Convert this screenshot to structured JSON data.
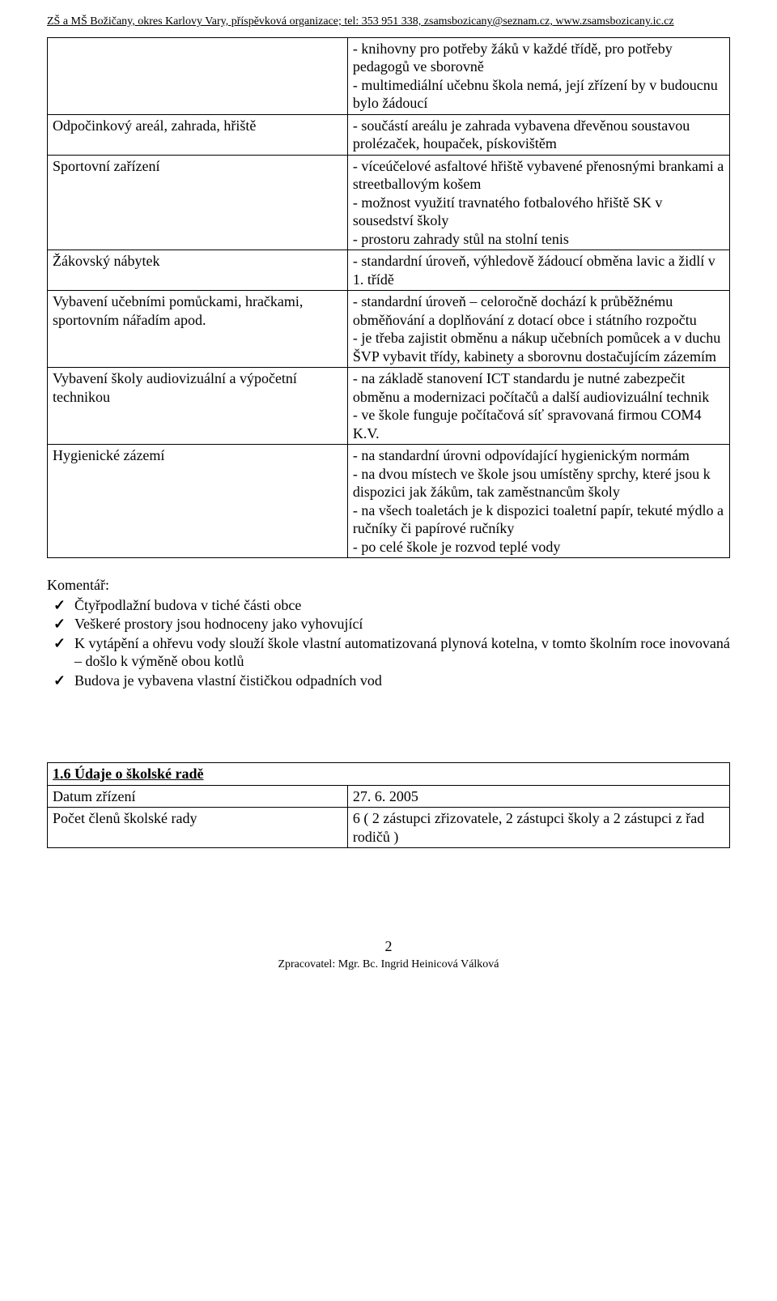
{
  "header": {
    "text": "ZŠ a MŠ Božičany, okres Karlovy Vary, příspěvková organizace; tel: 353 951 338, zsamsbozicany@seznam.cz, www.zsamsbozicany.ic.cz"
  },
  "table1": {
    "rows": [
      {
        "left": "",
        "right": "- knihovny pro potřeby žáků v každé třídě, pro potřeby pedagogů ve sborovně\n- multimediální učebnu škola nemá, její zřízení by v budoucnu bylo žádoucí"
      },
      {
        "left": "Odpočinkový areál, zahrada, hřiště",
        "right": "- součástí areálu je zahrada vybavena dřevěnou soustavou prolézaček, houpaček, pískovištěm"
      },
      {
        "left": "Sportovní zařízení",
        "right": "- víceúčelové asfaltové hřiště vybavené přenosnými brankami a streetballovým košem\n- možnost využití travnatého fotbalového hřiště SK v sousedství školy\n- prostoru zahrady stůl na stolní tenis"
      },
      {
        "left": "Žákovský nábytek",
        "right": "- standardní úroveň, výhledově žádoucí obměna lavic a židlí v 1. třídě"
      },
      {
        "left": "Vybavení učebními pomůckami, hračkami, sportovním nářadím apod.",
        "right": "- standardní úroveň – celoročně dochází k průběžnému obměňování a doplňování z dotací obce i státního rozpočtu\n- je třeba zajistit obměnu a nákup učebních pomůcek a v duchu ŠVP vybavit třídy, kabinety a sborovnu dostačujícím zázemím"
      },
      {
        "left": "Vybavení školy audiovizuální a výpočetní technikou",
        "right": "- na základě stanovení ICT standardu je nutné zabezpečit obměnu a modernizaci počítačů a další audiovizuální technik\n-  ve škole funguje počítačová síť spravovaná firmou COM4 K.V."
      },
      {
        "left": "Hygienické zázemí",
        "right": "- na standardní úrovni odpovídající hygienickým normám\n- na dvou místech ve škole jsou umístěny sprchy, které jsou k dispozici jak žákům, tak zaměstnancům školy\n- na všech toaletách je k dispozici toaletní papír, tekuté mýdlo a ručníky či papírové ručníky\n- po celé škole je rozvod teplé vody"
      }
    ]
  },
  "komentar": {
    "label": "Komentář:",
    "items": [
      "Čtyřpodlažní budova v tiché části obce",
      "Veškeré prostory jsou hodnoceny jako vyhovující",
      "K vytápění a ohřevu vody slouží škole vlastní automatizovaná plynová kotelna, v tomto školním roce inovovaná – došlo k výměně obou kotlů",
      "Budova je vybavena vlastní čističkou odpadních vod"
    ]
  },
  "rada": {
    "heading": "1.6 Údaje o školské radě",
    "rows": [
      {
        "left": "Datum zřízení",
        "right": "27. 6. 2005"
      },
      {
        "left": "Počet členů školské rady",
        "right": "6 ( 2 zástupci zřizovatele, 2 zástupci školy a 2 zástupci z řad rodičů )"
      }
    ]
  },
  "footer": {
    "page": "2",
    "line": "Zpracovatel: Mgr. Bc.  Ingrid Heinicová Válková"
  }
}
